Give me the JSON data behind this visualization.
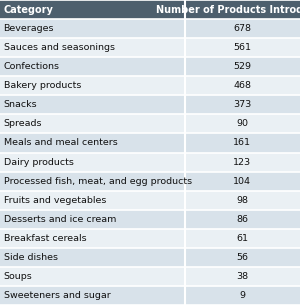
{
  "header": [
    "Category",
    "Number of Products Introduced"
  ],
  "rows": [
    [
      "Beverages",
      "678"
    ],
    [
      "Sauces and seasonings",
      "561"
    ],
    [
      "Confections",
      "529"
    ],
    [
      "Bakery products",
      "468"
    ],
    [
      "Snacks",
      "373"
    ],
    [
      "Spreads",
      "90"
    ],
    [
      "Meals and meal centers",
      "161"
    ],
    [
      "Dairy products",
      "123"
    ],
    [
      "Processed fish, meat, and egg products",
      "104"
    ],
    [
      "Fruits and vegetables",
      "98"
    ],
    [
      "Desserts and ice cream",
      "86"
    ],
    [
      "Breakfast cereals",
      "61"
    ],
    [
      "Side dishes",
      "56"
    ],
    [
      "Soups",
      "38"
    ],
    [
      "Sweeteners and sugar",
      "9"
    ]
  ],
  "header_bg": "#4d5f6d",
  "header_fg": "#ffffff",
  "row_bg_odd": "#d8e2ea",
  "row_bg_even": "#eaf0f4",
  "col_split": 0.615,
  "font_size": 6.8,
  "header_font_size": 7.0
}
